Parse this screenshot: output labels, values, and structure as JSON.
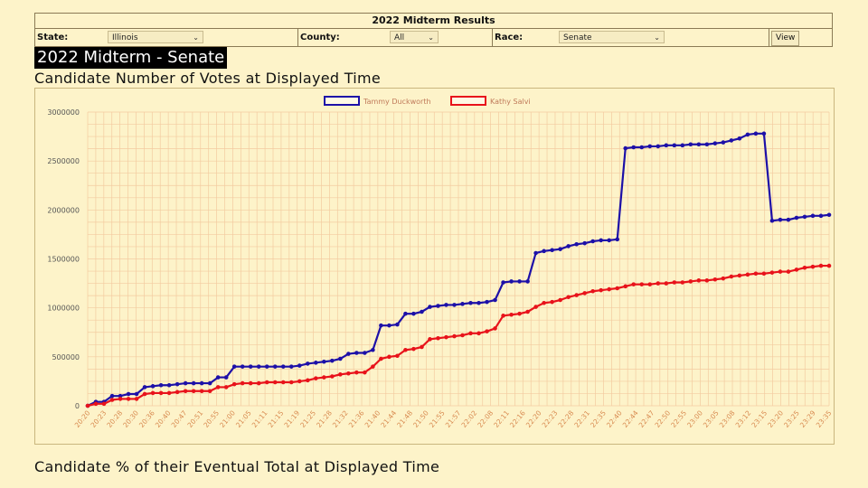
{
  "panel": {
    "title": "2022 Midterm Results",
    "state_label": "State:",
    "state_value": "Illinois",
    "county_label": "County:",
    "county_value": "All",
    "race_label": "Race:",
    "race_value": "Senate",
    "view_button": "View"
  },
  "heading": "2022 Midterm - Senate",
  "chart1_title": "Candidate Number of Votes at Displayed Time",
  "chart2_title": "Candidate % of their Eventual Total at Displayed Time",
  "colors": {
    "background": "#fdf3c9",
    "grid": "#f3cba0",
    "series1": "#1d10a8",
    "series2": "#e8131b"
  },
  "chart_data": {
    "type": "line",
    "title": "",
    "xlabel": "",
    "ylabel": "",
    "ylim": [
      0,
      3000000
    ],
    "yticks": [
      0,
      500000,
      1000000,
      1500000,
      2000000,
      2500000,
      3000000
    ],
    "grid": true,
    "legend_position": "top-center",
    "x_tick_labels": [
      "20:20",
      "20:23",
      "20:28",
      "20:30",
      "20:36",
      "20:40",
      "20:47",
      "20:51",
      "20:55",
      "21:00",
      "21:05",
      "21:11",
      "21:15",
      "21:19",
      "21:25",
      "21:28",
      "21:32",
      "21:36",
      "21:40",
      "21:44",
      "21:48",
      "21:50",
      "21:55",
      "21:57",
      "22:02",
      "22:08",
      "22:11",
      "22:16",
      "22:20",
      "22:23",
      "22:28",
      "22:31",
      "22:35",
      "22:40",
      "22:44",
      "22:47",
      "22:50",
      "22:55",
      "23:00",
      "23:05",
      "23:08",
      "23:12",
      "23:15",
      "23:20",
      "23:25",
      "23:29",
      "23:35"
    ],
    "series": [
      {
        "name": "Tammy Duckworth",
        "values": [
          0,
          40000,
          40000,
          100000,
          100000,
          120000,
          120000,
          190000,
          200000,
          210000,
          210000,
          220000,
          230000,
          230000,
          230000,
          230000,
          290000,
          290000,
          400000,
          400000,
          400000,
          400000,
          400000,
          400000,
          400000,
          400000,
          410000,
          430000,
          440000,
          450000,
          460000,
          480000,
          530000,
          540000,
          540000,
          570000,
          820000,
          820000,
          830000,
          940000,
          940000,
          960000,
          1010000,
          1020000,
          1030000,
          1030000,
          1040000,
          1050000,
          1050000,
          1060000,
          1080000,
          1260000,
          1270000,
          1270000,
          1270000,
          1560000,
          1580000,
          1590000,
          1600000,
          1630000,
          1650000,
          1660000,
          1680000,
          1690000,
          1690000,
          1700000,
          2630000,
          2640000,
          2640000,
          2650000,
          2650000,
          2660000,
          2660000,
          2660000,
          2670000,
          2670000,
          2670000,
          2680000,
          2690000,
          2710000,
          2730000,
          2770000,
          2780000,
          2780000,
          1890000,
          1900000,
          1900000,
          1920000,
          1930000,
          1940000,
          1940000,
          1950000
        ]
      },
      {
        "name": "Kathy Salvi",
        "values": [
          0,
          20000,
          20000,
          60000,
          70000,
          70000,
          70000,
          120000,
          130000,
          130000,
          130000,
          140000,
          150000,
          150000,
          150000,
          150000,
          190000,
          190000,
          220000,
          230000,
          230000,
          230000,
          240000,
          240000,
          240000,
          240000,
          250000,
          260000,
          280000,
          290000,
          300000,
          320000,
          330000,
          340000,
          340000,
          400000,
          480000,
          500000,
          510000,
          570000,
          580000,
          600000,
          680000,
          690000,
          700000,
          710000,
          720000,
          740000,
          740000,
          760000,
          790000,
          920000,
          930000,
          940000,
          960000,
          1010000,
          1050000,
          1060000,
          1080000,
          1110000,
          1130000,
          1150000,
          1170000,
          1180000,
          1190000,
          1200000,
          1220000,
          1240000,
          1240000,
          1240000,
          1250000,
          1250000,
          1260000,
          1260000,
          1270000,
          1280000,
          1280000,
          1290000,
          1300000,
          1320000,
          1330000,
          1340000,
          1350000,
          1350000,
          1360000,
          1370000,
          1370000,
          1390000,
          1410000,
          1420000,
          1430000,
          1430000
        ]
      }
    ]
  }
}
